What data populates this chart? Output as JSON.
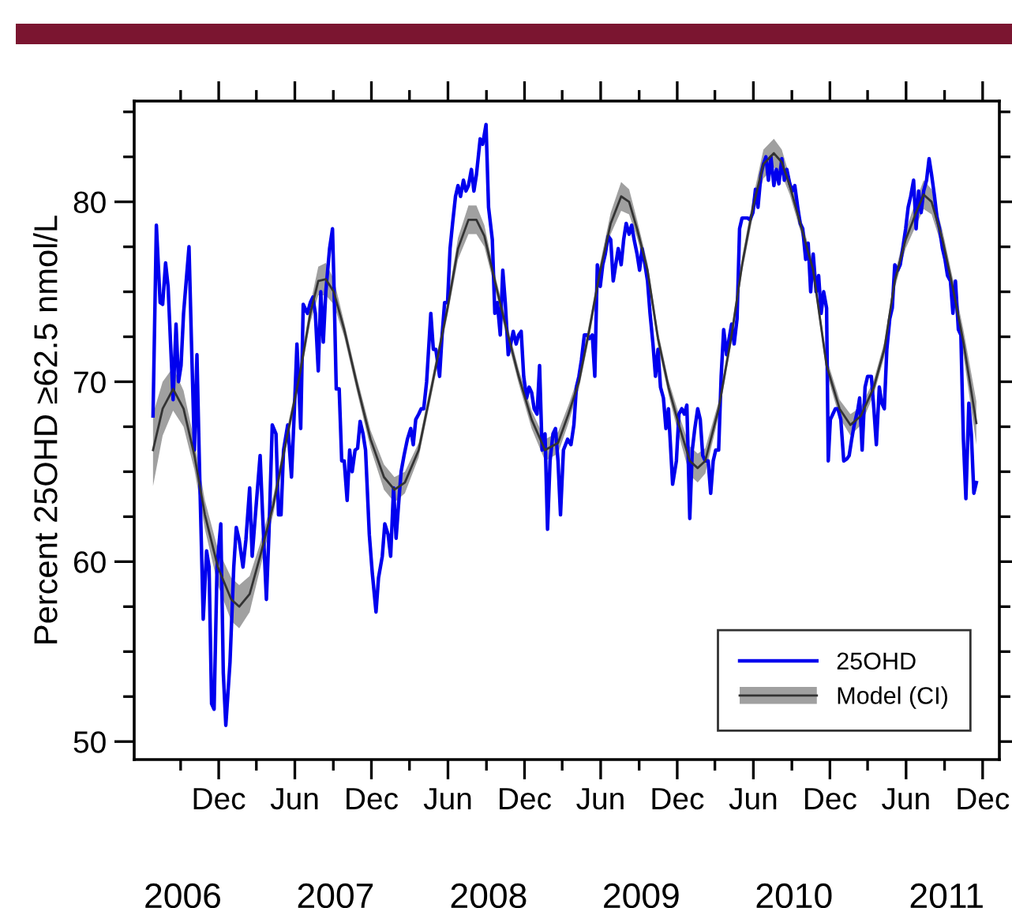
{
  "chart_data": {
    "type": "line",
    "ylabel": "Percent 25OHD ≥62.5 nmol/L",
    "xlim": [
      "2006-05-13",
      "2012-01-10"
    ],
    "ylim": [
      49,
      85.6
    ],
    "xticks": [
      {
        "value": "2006-09-01",
        "label": null
      },
      {
        "value": "2006-12-01",
        "label": "Dec"
      },
      {
        "value": "2007-03-01",
        "label": null
      },
      {
        "value": "2007-06-01",
        "label": "Jun"
      },
      {
        "value": "2007-09-01",
        "label": null
      },
      {
        "value": "2007-12-01",
        "label": "Dec"
      },
      {
        "value": "2008-03-01",
        "label": null
      },
      {
        "value": "2008-06-01",
        "label": "Jun"
      },
      {
        "value": "2008-09-01",
        "label": null
      },
      {
        "value": "2008-12-01",
        "label": "Dec"
      },
      {
        "value": "2009-03-01",
        "label": null
      },
      {
        "value": "2009-06-01",
        "label": "Jun"
      },
      {
        "value": "2009-09-01",
        "label": null
      },
      {
        "value": "2009-12-01",
        "label": "Dec"
      },
      {
        "value": "2010-03-01",
        "label": null
      },
      {
        "value": "2010-06-01",
        "label": "Jun"
      },
      {
        "value": "2010-09-01",
        "label": null
      },
      {
        "value": "2010-12-01",
        "label": "Dec"
      },
      {
        "value": "2011-03-01",
        "label": null
      },
      {
        "value": "2011-06-01",
        "label": "Jun"
      },
      {
        "value": "2011-09-01",
        "label": null
      },
      {
        "value": "2011-12-01",
        "label": "Dec"
      }
    ],
    "x2lim": [
      "2006-05-13",
      "2012-01-10"
    ],
    "x2ticks": [
      {
        "value": "2006-09-06",
        "label": "2006"
      },
      {
        "value": "2007-09-06",
        "label": "2007"
      },
      {
        "value": "2008-09-06",
        "label": "2008"
      },
      {
        "value": "2009-09-06",
        "label": "2009"
      },
      {
        "value": "2010-09-06",
        "label": "2010"
      },
      {
        "value": "2011-09-06",
        "label": "2011"
      }
    ],
    "yticks": [
      50,
      {
        "value": 52.5,
        "label": null
      },
      {
        "value": 55,
        "label": null
      },
      {
        "value": 57.5,
        "label": null
      },
      60,
      {
        "value": 62.5,
        "label": null
      },
      {
        "value": 65,
        "label": null
      },
      {
        "value": 67.5,
        "label": null
      },
      70,
      {
        "value": 72.5,
        "label": null
      },
      {
        "value": 75,
        "label": null
      },
      {
        "value": 77.5,
        "label": null
      },
      80,
      {
        "value": 82.5,
        "label": null
      },
      {
        "value": 85,
        "label": null
      }
    ],
    "grid": false,
    "legend": "bottom right",
    "marker": "none",
    "line_style": "solid",
    "series": [
      {
        "name": "25OHD",
        "color": "#0000ee",
        "x": [
          "2006-06-27",
          "2006-07-05",
          "2006-07-14",
          "2006-07-20",
          "2006-07-27",
          "2006-08-02",
          "2006-08-08",
          "2006-08-14",
          "2006-08-21",
          "2006-08-27",
          "2006-09-02",
          "2006-09-08",
          "2006-09-21",
          "2006-09-27",
          "2006-10-04",
          "2006-10-10",
          "2006-10-16",
          "2006-10-25",
          "2006-11-02",
          "2006-11-08",
          "2006-11-14",
          "2006-11-20",
          "2006-11-27",
          "2006-12-06",
          "2006-12-12",
          "2006-12-18",
          "2006-12-28",
          "2007-01-06",
          "2007-01-12",
          "2007-01-19",
          "2007-01-28",
          "2007-02-04",
          "2007-02-13",
          "2007-02-19",
          "2007-02-25",
          "2007-03-10",
          "2007-03-16",
          "2007-03-25",
          "2007-03-31",
          "2007-04-08",
          "2007-04-17",
          "2007-04-23",
          "2007-04-29",
          "2007-05-05",
          "2007-05-15",
          "2007-05-24",
          "2007-05-31",
          "2007-06-06",
          "2007-06-15",
          "2007-06-21",
          "2007-07-01",
          "2007-07-08",
          "2007-07-14",
          "2007-07-20",
          "2007-07-27",
          "2007-08-02",
          "2007-08-08",
          "2007-08-14",
          "2007-08-23",
          "2007-08-30",
          "2007-09-02",
          "2007-09-08",
          "2007-09-15",
          "2007-09-21",
          "2007-09-27",
          "2007-10-04",
          "2007-10-10",
          "2007-10-16",
          "2007-10-23",
          "2007-10-29",
          "2007-11-04",
          "2007-11-11",
          "2007-11-17",
          "2007-11-26",
          "2007-12-03",
          "2007-12-12",
          "2007-12-18",
          "2007-12-27",
          "2008-01-02",
          "2008-01-10",
          "2008-01-16",
          "2008-01-23",
          "2008-01-29",
          "2008-02-04",
          "2008-02-10",
          "2008-02-17",
          "2008-02-25",
          "2008-03-04",
          "2008-03-10",
          "2008-03-16",
          "2008-03-23",
          "2008-03-29",
          "2008-04-04",
          "2008-04-11",
          "2008-04-21",
          "2008-04-27",
          "2008-05-03",
          "2008-05-12",
          "2008-05-18",
          "2008-05-24",
          "2008-05-31",
          "2008-06-06",
          "2008-06-12",
          "2008-06-19",
          "2008-06-25",
          "2008-07-01",
          "2008-07-08",
          "2008-07-14",
          "2008-07-20",
          "2008-07-27",
          "2008-08-02",
          "2008-08-08",
          "2008-08-17",
          "2008-08-23",
          "2008-08-31",
          "2008-09-06",
          "2008-09-15",
          "2008-09-21",
          "2008-09-27",
          "2008-10-04",
          "2008-10-10",
          "2008-10-16",
          "2008-10-23",
          "2008-10-29",
          "2008-11-04",
          "2008-11-11",
          "2008-11-17",
          "2008-11-23",
          "2008-11-29",
          "2008-12-06",
          "2008-12-12",
          "2008-12-18",
          "2008-12-24",
          "2008-12-31",
          "2009-01-06",
          "2009-01-12",
          "2009-01-19",
          "2009-01-25",
          "2009-01-31",
          "2009-02-07",
          "2009-02-13",
          "2009-02-19",
          "2009-02-25",
          "2009-03-04",
          "2009-03-14",
          "2009-03-22",
          "2009-03-29",
          "2009-04-04",
          "2009-04-10",
          "2009-04-16",
          "2009-04-23",
          "2009-04-29",
          "2009-05-05",
          "2009-05-12",
          "2009-05-18",
          "2009-05-24",
          "2009-05-31",
          "2009-06-06",
          "2009-06-12",
          "2009-06-19",
          "2009-06-25",
          "2009-07-01",
          "2009-07-07",
          "2009-07-13",
          "2009-07-20",
          "2009-07-26",
          "2009-08-01",
          "2009-08-08",
          "2009-08-14",
          "2009-08-20",
          "2009-08-27",
          "2009-09-02",
          "2009-09-08",
          "2009-09-15",
          "2009-09-21",
          "2009-09-27",
          "2009-10-04",
          "2009-10-10",
          "2009-10-16",
          "2009-10-22",
          "2009-10-29",
          "2009-11-04",
          "2009-11-10",
          "2009-11-20",
          "2009-11-29",
          "2009-12-05",
          "2009-12-12",
          "2009-12-18",
          "2009-12-24",
          "2009-12-31",
          "2010-01-06",
          "2010-01-12",
          "2010-01-19",
          "2010-01-25",
          "2010-01-31",
          "2010-02-06",
          "2010-02-13",
          "2010-02-19",
          "2010-02-25",
          "2010-03-03",
          "2010-03-10",
          "2010-03-16",
          "2010-03-22",
          "2010-03-29",
          "2010-04-04",
          "2010-04-10",
          "2010-04-16",
          "2010-04-23",
          "2010-04-29",
          "2010-05-05",
          "2010-05-12",
          "2010-05-18",
          "2010-05-24",
          "2010-05-31",
          "2010-06-06",
          "2010-06-12",
          "2010-06-19",
          "2010-06-25",
          "2010-07-01",
          "2010-07-07",
          "2010-07-13",
          "2010-07-20",
          "2010-07-26",
          "2010-08-01",
          "2010-08-08",
          "2010-08-14",
          "2010-08-20",
          "2010-08-27",
          "2010-09-02",
          "2010-09-08",
          "2010-09-15",
          "2010-09-21",
          "2010-09-27",
          "2010-10-04",
          "2010-10-10",
          "2010-10-16",
          "2010-10-22",
          "2010-10-29",
          "2010-11-04",
          "2010-11-10",
          "2010-11-16",
          "2010-11-23",
          "2010-11-27",
          "2010-12-02",
          "2010-12-08",
          "2010-12-14",
          "2010-12-20",
          "2010-12-27",
          "2011-01-03",
          "2011-01-10",
          "2011-01-16",
          "2011-01-22",
          "2011-01-28",
          "2011-02-06",
          "2011-02-10",
          "2011-02-16",
          "2011-02-23",
          "2011-03-01",
          "2011-03-10",
          "2011-03-16",
          "2011-03-22",
          "2011-03-29",
          "2011-04-04",
          "2011-04-10",
          "2011-04-16",
          "2011-04-23",
          "2011-04-29",
          "2011-05-05",
          "2011-05-12",
          "2011-05-18",
          "2011-05-24",
          "2011-05-31",
          "2011-06-06",
          "2011-06-12",
          "2011-06-19",
          "2011-06-25",
          "2011-07-01",
          "2011-07-07",
          "2011-07-13",
          "2011-07-20",
          "2011-07-26",
          "2011-08-01",
          "2011-08-08",
          "2011-08-14",
          "2011-08-20",
          "2011-08-27",
          "2011-09-02",
          "2011-09-08",
          "2011-09-15",
          "2011-09-21",
          "2011-09-27",
          "2011-10-04",
          "2011-10-10",
          "2011-10-16",
          "2011-10-22",
          "2011-10-29",
          "2011-11-04",
          "2011-11-10",
          "2011-11-16"
        ],
        "values": [
          68.1,
          78.7,
          74.4,
          74.3,
          76.6,
          75.3,
          72.1,
          69.0,
          73.2,
          70.0,
          70.9,
          73.8,
          77.5,
          72.1,
          66.2,
          71.5,
          65.3,
          56.8,
          60.6,
          59.7,
          52.1,
          51.8,
          59.7,
          62.1,
          53.8,
          50.9,
          54.4,
          59.7,
          61.9,
          61.2,
          59.7,
          61.2,
          64.1,
          60.3,
          62.1,
          65.9,
          62.6,
          57.9,
          61.5,
          67.6,
          67.1,
          62.6,
          62.6,
          66.2,
          67.6,
          64.7,
          68.5,
          72.1,
          67.4,
          74.3,
          73.8,
          74.4,
          74.7,
          73.8,
          70.6,
          75.0,
          72.2,
          75.0,
          77.4,
          78.5,
          75.9,
          69.6,
          69.6,
          65.6,
          65.6,
          63.4,
          66.2,
          65.0,
          66.2,
          66.3,
          67.8,
          67.1,
          66.2,
          61.5,
          59.4,
          57.2,
          59.1,
          60.3,
          62.1,
          61.5,
          60.3,
          64.1,
          61.3,
          63.2,
          65.0,
          65.9,
          66.8,
          67.4,
          66.5,
          67.9,
          68.2,
          68.5,
          68.5,
          70.0,
          73.8,
          71.8,
          71.8,
          70.3,
          72.6,
          74.4,
          74.4,
          77.4,
          78.8,
          80.3,
          80.9,
          80.3,
          81.2,
          80.6,
          80.9,
          81.8,
          80.6,
          81.5,
          83.5,
          83.2,
          84.3,
          79.7,
          77.9,
          73.8,
          74.4,
          72.6,
          76.2,
          74.4,
          71.5,
          72.1,
          72.8,
          72.1,
          72.6,
          72.8,
          70.3,
          69.1,
          69.7,
          69.4,
          68.5,
          68.2,
          70.9,
          66.2,
          67.1,
          61.8,
          65.6,
          67.1,
          67.4,
          65.6,
          62.6,
          66.2,
          66.8,
          66.5,
          67.6,
          69.7,
          70.3,
          71.2,
          72.6,
          72.6,
          72.4,
          72.6,
          70.3,
          76.5,
          75.3,
          76.5,
          77.1,
          78.1,
          77.9,
          75.6,
          76.5,
          77.4,
          76.5,
          77.9,
          78.8,
          78.2,
          78.7,
          77.9,
          77.1,
          76.2,
          77.4,
          76.5,
          75.6,
          73.8,
          72.1,
          70.3,
          71.8,
          69.7,
          69.1,
          67.4,
          68.5,
          64.3,
          65.6,
          68.2,
          68.5,
          68.2,
          68.7,
          62.4,
          66.2,
          67.4,
          68.5,
          67.9,
          65.9,
          65.6,
          65.6,
          63.8,
          65.6,
          66.2,
          66.2,
          70.3,
          72.9,
          71.5,
          72.4,
          73.2,
          72.1,
          73.5,
          78.5,
          79.1,
          79.1,
          79.1,
          79.0,
          79.4,
          80.7,
          79.7,
          81.5,
          82.1,
          82.5,
          81.2,
          82.5,
          80.9,
          81.8,
          81.0,
          82.4,
          81.2,
          81.8,
          81.0,
          80.6,
          80.9,
          79.7,
          78.8,
          78.5,
          76.8,
          77.7,
          75.0,
          77.1,
          75.0,
          75.9,
          73.8,
          75.0,
          74.1,
          65.6,
          67.9,
          68.2,
          68.5,
          68.5,
          67.9,
          65.6,
          65.7,
          65.9,
          66.8,
          67.6,
          68.5,
          69.1,
          66.2,
          69.7,
          70.3,
          70.3,
          68.5,
          66.5,
          69.7,
          68.8,
          68.5,
          71.8,
          73.5,
          74.1,
          76.5,
          76.2,
          76.5,
          77.4,
          78.5,
          79.7,
          80.3,
          81.2,
          78.5,
          80.6,
          79.4,
          80.6,
          81.2,
          82.4,
          81.5,
          80.3,
          79.1,
          78.5,
          77.4,
          76.8,
          75.9,
          75.6,
          73.8,
          75.6,
          72.9,
          72.6,
          66.8,
          63.5,
          68.8,
          67.1,
          63.8,
          64.4
        ]
      },
      {
        "name": "Model (CI)",
        "color": "#333333",
        "x": [
          "2006-06-27",
          "2006-07-20",
          "2006-08-14",
          "2006-09-08",
          "2006-10-04",
          "2006-10-29",
          "2006-11-29",
          "2006-12-31",
          "2007-01-19",
          "2007-02-13",
          "2007-03-10",
          "2007-04-11",
          "2007-05-12",
          "2007-06-12",
          "2007-07-08",
          "2007-07-27",
          "2007-08-14",
          "2007-09-02",
          "2007-09-27",
          "2007-10-29",
          "2007-11-29",
          "2007-12-31",
          "2008-01-25",
          "2008-02-19",
          "2008-03-23",
          "2008-04-23",
          "2008-05-31",
          "2008-06-25",
          "2008-07-20",
          "2008-08-08",
          "2008-08-27",
          "2008-09-21",
          "2008-10-16",
          "2008-11-17",
          "2008-12-18",
          "2009-01-19",
          "2009-02-19",
          "2009-03-16",
          "2009-04-10",
          "2009-05-05",
          "2009-05-31",
          "2009-06-25",
          "2009-07-20",
          "2009-08-08",
          "2009-08-27",
          "2009-09-21",
          "2009-10-16",
          "2009-11-10",
          "2009-12-05",
          "2009-12-31",
          "2010-01-19",
          "2010-02-06",
          "2010-03-10",
          "2010-04-10",
          "2010-05-05",
          "2010-05-31",
          "2010-06-25",
          "2010-07-20",
          "2010-08-08",
          "2010-08-27",
          "2010-09-21",
          "2010-10-22",
          "2010-11-23",
          "2010-12-24",
          "2011-01-19",
          "2011-02-13",
          "2011-03-16",
          "2011-04-10",
          "2011-05-05",
          "2011-05-31",
          "2011-06-25",
          "2011-07-13",
          "2011-08-01",
          "2011-08-27",
          "2011-09-21",
          "2011-10-16",
          "2011-11-16"
        ],
        "values": [
          66.2,
          68.5,
          69.6,
          68.5,
          65.9,
          62.6,
          59.7,
          57.9,
          57.5,
          58.2,
          60.3,
          63.2,
          66.8,
          70.3,
          73.8,
          75.6,
          75.7,
          75.0,
          72.9,
          69.7,
          66.8,
          64.7,
          64.0,
          64.4,
          66.2,
          69.7,
          74.1,
          77.4,
          79.0,
          79.0,
          78.1,
          75.6,
          73.2,
          70.3,
          67.9,
          66.2,
          66.6,
          68.2,
          70.0,
          72.9,
          76.2,
          78.8,
          80.3,
          80.0,
          78.5,
          76.2,
          72.4,
          69.7,
          67.6,
          65.6,
          65.2,
          65.6,
          68.5,
          72.6,
          76.5,
          79.7,
          82.1,
          82.7,
          82.2,
          80.9,
          78.8,
          76.2,
          70.9,
          68.5,
          67.6,
          68.1,
          69.7,
          71.8,
          75.6,
          77.9,
          79.4,
          80.4,
          80.0,
          77.9,
          75.2,
          72.2,
          67.7
        ],
        "lower": [
          64.2,
          67.0,
          68.4,
          67.5,
          65.1,
          61.8,
          58.7,
          56.7,
          56.3,
          57.2,
          59.6,
          62.7,
          66.4,
          69.9,
          73.3,
          74.8,
          74.8,
          74.3,
          72.5,
          69.3,
          66.3,
          64.0,
          63.3,
          63.8,
          65.8,
          69.3,
          73.7,
          76.8,
          78.2,
          78.2,
          77.5,
          75.2,
          72.8,
          69.9,
          67.4,
          65.6,
          66.0,
          67.7,
          69.6,
          72.5,
          75.8,
          78.2,
          79.5,
          79.3,
          78.0,
          75.8,
          72.0,
          69.3,
          67.0,
          64.8,
          64.4,
          64.9,
          68.1,
          72.2,
          76.1,
          79.2,
          81.3,
          81.9,
          81.5,
          80.4,
          78.4,
          75.8,
          70.5,
          68.0,
          67.0,
          67.6,
          69.3,
          71.4,
          75.2,
          77.4,
          78.7,
          79.6,
          79.3,
          77.4,
          74.7,
          71.5,
          66.5
        ],
        "upper": [
          68.2,
          70.0,
          70.8,
          69.5,
          66.7,
          63.4,
          60.7,
          59.1,
          58.7,
          59.2,
          61.0,
          63.7,
          67.2,
          70.7,
          74.3,
          76.4,
          76.6,
          75.7,
          73.3,
          70.1,
          67.3,
          65.4,
          64.7,
          65.0,
          66.6,
          70.1,
          74.5,
          78.0,
          79.8,
          79.8,
          78.7,
          76.0,
          73.6,
          70.7,
          68.4,
          66.8,
          67.2,
          68.7,
          70.4,
          73.3,
          76.6,
          79.4,
          81.1,
          80.7,
          79.0,
          76.6,
          72.8,
          70.1,
          68.2,
          66.4,
          66.0,
          66.3,
          68.9,
          73.0,
          76.9,
          80.2,
          82.9,
          83.5,
          82.9,
          81.4,
          79.2,
          76.6,
          71.3,
          69.0,
          68.2,
          68.6,
          70.1,
          72.2,
          76.0,
          78.4,
          80.1,
          81.2,
          80.7,
          78.4,
          75.7,
          72.9,
          68.9
        ]
      }
    ]
  }
}
